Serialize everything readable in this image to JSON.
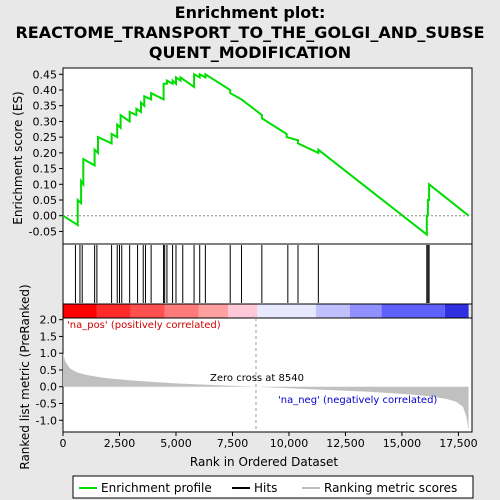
{
  "chart_data": {
    "type": "line",
    "title_lines": [
      "Enrichment plot:",
      "REACTOME_TRANSPORT_TO_THE_GOLGI_AND_SUBSE",
      "QUENT_MODIFICATION"
    ],
    "es_panel": {
      "ylabel": "Enrichment score (ES)",
      "ylim": [
        -0.09,
        0.47
      ],
      "yticks": [
        "-0.05",
        "0.00",
        "0.05",
        "0.10",
        "0.15",
        "0.20",
        "0.25",
        "0.30",
        "0.35",
        "0.40",
        "0.45"
      ],
      "ytick_values": [
        -0.05,
        0.0,
        0.05,
        0.1,
        0.15,
        0.2,
        0.25,
        0.3,
        0.35,
        0.4,
        0.45
      ],
      "series_name": "Enrichment profile",
      "color": "#00dd00",
      "x": [
        0,
        650,
        650,
        800,
        800,
        900,
        900,
        1400,
        1400,
        1550,
        1550,
        2150,
        2150,
        2400,
        2400,
        2550,
        2550,
        2950,
        2950,
        3250,
        3250,
        3450,
        3450,
        3600,
        3600,
        3900,
        3900,
        4450,
        4450,
        4600,
        4600,
        4850,
        4850,
        5000,
        5000,
        5200,
        5200,
        5800,
        5800,
        6050,
        6050,
        6300,
        6300,
        7400,
        7400,
        7900,
        7900,
        8800,
        8800,
        9900,
        9900,
        10400,
        10400,
        11300,
        11300,
        16100,
        16100,
        16150,
        16150,
        16200,
        16200,
        17950
      ],
      "y": [
        0.0,
        -0.03,
        0.05,
        0.04,
        0.11,
        0.1,
        0.18,
        0.16,
        0.21,
        0.2,
        0.25,
        0.23,
        0.26,
        0.25,
        0.29,
        0.28,
        0.32,
        0.3,
        0.33,
        0.32,
        0.34,
        0.33,
        0.36,
        0.35,
        0.38,
        0.37,
        0.39,
        0.37,
        0.42,
        0.42,
        0.43,
        0.42,
        0.43,
        0.42,
        0.44,
        0.43,
        0.44,
        0.41,
        0.45,
        0.44,
        0.45,
        0.44,
        0.45,
        0.4,
        0.39,
        0.37,
        0.37,
        0.32,
        0.31,
        0.26,
        0.25,
        0.24,
        0.23,
        0.2,
        0.21,
        -0.06,
        0.0,
        0.0,
        0.05,
        0.05,
        0.1,
        0.0
      ]
    },
    "hits": [
      550,
      750,
      850,
      1400,
      1500,
      2150,
      2400,
      2500,
      2600,
      2950,
      3300,
      3550,
      3650,
      3900,
      4450,
      4500,
      4600,
      4850,
      5000,
      5300,
      5800,
      6050,
      6300,
      7400,
      7900,
      8800,
      9950,
      10400,
      11300,
      16100,
      16150,
      16200
    ],
    "heatbar": {
      "colors": [
        "#ff0000",
        "#ff2a2a",
        "#ff5050",
        "#ff7a7a",
        "#ffa0a0",
        "#ffc8d8",
        "#e8e8ff",
        "#c0c0ff",
        "#9090ff",
        "#6060ff",
        "#3030e0",
        "#1010c0"
      ],
      "stops": [
        0,
        1500,
        3000,
        4500,
        6000,
        7300,
        8600,
        11200,
        12700,
        14100,
        16900,
        17950
      ]
    },
    "rank_panel": {
      "ylabel": "Ranked list metric (PreRanked)",
      "xlabel": "Rank in Ordered Dataset",
      "ylim": [
        -1.35,
        2.05
      ],
      "yticks": [
        "-1.0",
        "-0.5",
        "0.0",
        "0.5",
        "1.0",
        "1.5",
        "2.0"
      ],
      "ytick_values": [
        -1.0,
        -0.5,
        0.0,
        0.5,
        1.0,
        1.5,
        2.0
      ],
      "x": [
        0,
        100,
        300,
        600,
        1000,
        1500,
        2000,
        3000,
        4000,
        5000,
        6000,
        7000,
        8000,
        8540,
        9500,
        10500,
        11500,
        12500,
        13500,
        14500,
        15500,
        16500,
        17000,
        17400,
        17700,
        17850,
        17950
      ],
      "y": [
        1.0,
        0.75,
        0.55,
        0.43,
        0.36,
        0.3,
        0.25,
        0.19,
        0.14,
        0.1,
        0.07,
        0.04,
        0.015,
        0.0,
        -0.03,
        -0.06,
        -0.09,
        -0.12,
        -0.15,
        -0.19,
        -0.24,
        -0.31,
        -0.37,
        -0.45,
        -0.6,
        -0.9,
        -1.3
      ],
      "fill": "#c0c0c0",
      "zero_cross_label": "Zero cross at 8540",
      "zero_cross_x": 8540,
      "pos_label": "'na_pos' (positively correlated)",
      "neg_label": "'na_neg' (negatively correlated)",
      "pos_color": "#cc0000",
      "neg_color": "#0000cc"
    },
    "xlim": [
      0,
      18100
    ],
    "xticks": [
      "0",
      "2,500",
      "5,000",
      "7,500",
      "10,000",
      "12,500",
      "15,000",
      "17,500"
    ],
    "xtick_values": [
      0,
      2500,
      5000,
      7500,
      10000,
      12500,
      15000,
      17500
    ],
    "legend": [
      {
        "label": "Enrichment profile",
        "color": "#00dd00"
      },
      {
        "label": "Hits",
        "color": "#000000"
      },
      {
        "label": "Ranking metric scores",
        "color": "#c0c0c0"
      }
    ]
  }
}
